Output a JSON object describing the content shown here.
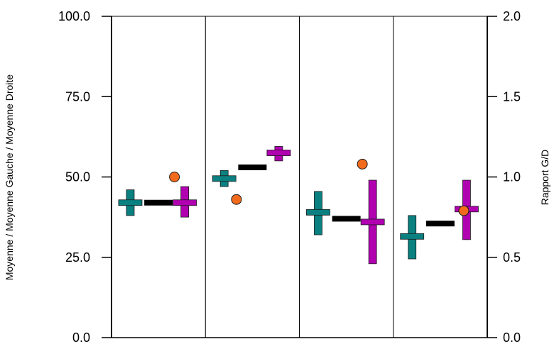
{
  "chart_data": {
    "type": "scatter",
    "title": "",
    "ylabel_left": "Moyenne  / Moyenne  Gauche / Moyenne  Droite",
    "ylabel_right": "Rapport G/D",
    "ylim_left": [
      0,
      100
    ],
    "ylim_right": [
      0,
      2
    ],
    "yticks_left": [
      "0.0",
      "25.0",
      "50.0",
      "75.0",
      "100.0"
    ],
    "yticks_right": [
      "0.0",
      "0.5",
      "1.0",
      "1.5",
      "2.0"
    ],
    "grid": true,
    "groups": 4,
    "series": [
      {
        "role": "gauche",
        "color": "#0b8080",
        "points": [
          {
            "group": 1,
            "mean": 42,
            "low": 38,
            "high": 46
          },
          {
            "group": 2,
            "mean": 49.5,
            "low": 47,
            "high": 52
          },
          {
            "group": 3,
            "mean": 39,
            "low": 32,
            "high": 45.5
          },
          {
            "group": 4,
            "mean": 31.5,
            "low": 24.5,
            "high": 38
          }
        ]
      },
      {
        "role": "moyenne",
        "color": "#000000",
        "points": [
          {
            "group": 1,
            "mean": 42
          },
          {
            "group": 2,
            "mean": 53
          },
          {
            "group": 3,
            "mean": 37
          },
          {
            "group": 4,
            "mean": 35.5
          }
        ]
      },
      {
        "role": "droite",
        "color": "#b000b0",
        "points": [
          {
            "group": 1,
            "mean": 42,
            "low": 37.5,
            "high": 47
          },
          {
            "group": 2,
            "mean": 57.5,
            "low": 55,
            "high": 59.5
          },
          {
            "group": 3,
            "mean": 36,
            "low": 23,
            "high": 49
          },
          {
            "group": 4,
            "mean": 40,
            "low": 30.5,
            "high": 49
          }
        ]
      },
      {
        "role": "rapport",
        "axis": "right",
        "color": "#f26b1d",
        "points": [
          {
            "group": 1,
            "value": 1.0
          },
          {
            "group": 2,
            "value": 0.86
          },
          {
            "group": 3,
            "value": 1.08
          },
          {
            "group": 4,
            "value": 0.79
          }
        ]
      }
    ]
  }
}
